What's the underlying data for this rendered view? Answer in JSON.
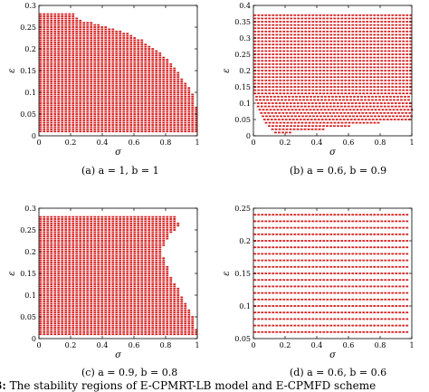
{
  "figure": {
    "caption_prefix": "3:",
    "caption_text": " The stability regions of E-CPMRT-LB model and E-CPMFD scheme"
  },
  "chart_data": [
    {
      "type": "scatter",
      "caption": "(a) a = 1, b = 1",
      "xlabel": "σ",
      "ylabel": "ε",
      "xlim": [
        0,
        1
      ],
      "ylim": [
        0,
        0.3
      ],
      "xticks": [
        0,
        0.2,
        0.4,
        0.6,
        0.8,
        1
      ],
      "yticks": [
        0,
        0.05,
        0.1,
        0.15,
        0.2,
        0.25,
        0.3
      ],
      "xtick_labels": [
        "0",
        "0.2",
        "0.4",
        "0.6",
        "0.8",
        "1"
      ],
      "ytick_labels": [
        "0",
        "0.05",
        "0.1",
        "0.15",
        "0.2",
        "0.25",
        "0.3"
      ],
      "marker_color": "#d62020",
      "stable_region": {
        "epsilon_levels": [
          0.01,
          0.015,
          0.02,
          0.025,
          0.03,
          0.035,
          0.04,
          0.045,
          0.05,
          0.055,
          0.06,
          0.065,
          0.07,
          0.075,
          0.08,
          0.085,
          0.09,
          0.095,
          0.1,
          0.105,
          0.11,
          0.115,
          0.12,
          0.125,
          0.13,
          0.135,
          0.14,
          0.145,
          0.15,
          0.155,
          0.16,
          0.165,
          0.17,
          0.175,
          0.18,
          0.185,
          0.19,
          0.195,
          0.2,
          0.205,
          0.21,
          0.215,
          0.22,
          0.225,
          0.23,
          0.235,
          0.24,
          0.245,
          0.25,
          0.255,
          0.26,
          0.265,
          0.27,
          0.275,
          0.28
        ],
        "sigma_min": [
          0.01,
          0.01,
          0.01,
          0.01,
          0.01,
          0.01,
          0.01,
          0.01,
          0.01,
          0.01,
          0.01,
          0.01,
          0.01,
          0.01,
          0.01,
          0.01,
          0.01,
          0.01,
          0.01,
          0.01,
          0.01,
          0.01,
          0.01,
          0.01,
          0.01,
          0.01,
          0.01,
          0.01,
          0.01,
          0.01,
          0.01,
          0.01,
          0.01,
          0.01,
          0.01,
          0.01,
          0.01,
          0.01,
          0.01,
          0.01,
          0.01,
          0.01,
          0.01,
          0.01,
          0.01,
          0.01,
          0.01,
          0.01,
          0.01,
          0.01,
          0.01,
          0.01,
          0.01,
          0.01,
          0.01
        ],
        "sigma_max": [
          1.0,
          1.0,
          1.0,
          1.0,
          1.0,
          1.0,
          1.0,
          1.0,
          1.0,
          1.0,
          1.0,
          1.0,
          0.99,
          0.99,
          0.98,
          0.98,
          0.97,
          0.97,
          0.96,
          0.95,
          0.95,
          0.94,
          0.93,
          0.92,
          0.91,
          0.9,
          0.89,
          0.88,
          0.87,
          0.86,
          0.85,
          0.84,
          0.82,
          0.81,
          0.8,
          0.78,
          0.77,
          0.75,
          0.73,
          0.71,
          0.69,
          0.67,
          0.65,
          0.62,
          0.59,
          0.56,
          0.52,
          0.48,
          0.43,
          0.38,
          0.33,
          0.28,
          0.25,
          0.23,
          0.22
        ]
      }
    },
    {
      "type": "scatter",
      "caption": "(b) a = 0.6, b = 0.9",
      "xlabel": "σ",
      "ylabel": "ε",
      "xlim": [
        0,
        1
      ],
      "ylim": [
        0,
        0.4
      ],
      "xticks": [
        0,
        0.2,
        0.4,
        0.6,
        0.8,
        1
      ],
      "yticks": [
        0,
        0.05,
        0.1,
        0.15,
        0.2,
        0.25,
        0.3,
        0.35,
        0.4
      ],
      "xtick_labels": [
        "0",
        "0.2",
        "0.4",
        "0.6",
        "0.8",
        "1"
      ],
      "ytick_labels": [
        "0",
        "0.05",
        "0.1",
        "0.15",
        "0.2",
        "0.25",
        "0.3",
        "0.35",
        "0.4"
      ],
      "marker_color": "#d62020",
      "stable_region": {
        "epsilon_levels": [
          0.01,
          0.02,
          0.03,
          0.04,
          0.05,
          0.06,
          0.07,
          0.08,
          0.09,
          0.1,
          0.11,
          0.12,
          0.13,
          0.14,
          0.15,
          0.16,
          0.17,
          0.18,
          0.19,
          0.2,
          0.21,
          0.22,
          0.23,
          0.24,
          0.25,
          0.26,
          0.27,
          0.28,
          0.29,
          0.3,
          0.31,
          0.32,
          0.33,
          0.34,
          0.35,
          0.36,
          0.37
        ],
        "sigma_min": [
          0.14,
          0.12,
          0.1,
          0.08,
          0.07,
          0.06,
          0.05,
          0.04,
          0.03,
          0.03,
          0.02,
          0.02,
          0.01,
          0.01,
          0.01,
          0.01,
          0.01,
          0.01,
          0.01,
          0.01,
          0.01,
          0.01,
          0.01,
          0.01,
          0.01,
          0.01,
          0.01,
          0.01,
          0.01,
          0.01,
          0.01,
          0.01,
          0.01,
          0.01,
          0.01,
          0.01,
          0.01
        ],
        "sigma_max": [
          0.25,
          0.45,
          0.62,
          0.8,
          1.0,
          1.0,
          1.0,
          1.0,
          1.0,
          1.0,
          1.0,
          1.0,
          1.0,
          1.0,
          1.0,
          1.0,
          1.0,
          1.0,
          1.0,
          1.0,
          1.0,
          1.0,
          1.0,
          1.0,
          1.0,
          1.0,
          1.0,
          1.0,
          1.0,
          1.0,
          1.0,
          1.0,
          1.0,
          1.0,
          1.0,
          1.0,
          1.0
        ]
      }
    },
    {
      "type": "scatter",
      "caption": "(c) a = 0.9, b = 0.8",
      "xlabel": "σ",
      "ylabel": "ε",
      "xlim": [
        0,
        1
      ],
      "ylim": [
        0,
        0.3
      ],
      "xticks": [
        0,
        0.2,
        0.4,
        0.6,
        0.8,
        1
      ],
      "yticks": [
        0,
        0.05,
        0.1,
        0.15,
        0.2,
        0.25,
        0.3
      ],
      "xtick_labels": [
        "0",
        "0.2",
        "0.4",
        "0.6",
        "0.8",
        "1"
      ],
      "ytick_labels": [
        "0",
        "0.05",
        "0.1",
        "0.15",
        "0.2",
        "0.25",
        "0.3"
      ],
      "marker_color": "#d62020",
      "stable_region": {
        "epsilon_levels": [
          0.01,
          0.015,
          0.02,
          0.025,
          0.03,
          0.035,
          0.04,
          0.045,
          0.05,
          0.055,
          0.06,
          0.065,
          0.07,
          0.075,
          0.08,
          0.085,
          0.09,
          0.095,
          0.1,
          0.105,
          0.11,
          0.115,
          0.12,
          0.125,
          0.13,
          0.135,
          0.14,
          0.145,
          0.15,
          0.155,
          0.16,
          0.165,
          0.17,
          0.175,
          0.18,
          0.185,
          0.19,
          0.195,
          0.2,
          0.205,
          0.21,
          0.215,
          0.22,
          0.225,
          0.23,
          0.235,
          0.24,
          0.245,
          0.25,
          0.255,
          0.26,
          0.265,
          0.27,
          0.275,
          0.28
        ],
        "sigma_min": [
          0.01,
          0.01,
          0.01,
          0.01,
          0.01,
          0.01,
          0.01,
          0.01,
          0.01,
          0.01,
          0.01,
          0.01,
          0.01,
          0.01,
          0.01,
          0.01,
          0.01,
          0.01,
          0.01,
          0.01,
          0.01,
          0.01,
          0.01,
          0.01,
          0.01,
          0.01,
          0.01,
          0.01,
          0.01,
          0.01,
          0.01,
          0.01,
          0.01,
          0.01,
          0.01,
          0.01,
          0.01,
          0.01,
          0.01,
          0.01,
          0.01,
          0.01,
          0.01,
          0.01,
          0.01,
          0.01,
          0.01,
          0.01,
          0.01,
          0.01,
          0.01,
          0.01,
          0.01,
          0.01,
          0.01
        ],
        "sigma_max": [
          1.0,
          1.0,
          1.0,
          0.99,
          0.99,
          0.98,
          0.98,
          0.97,
          0.97,
          0.96,
          0.96,
          0.95,
          0.94,
          0.93,
          0.93,
          0.92,
          0.91,
          0.91,
          0.9,
          0.89,
          0.88,
          0.88,
          0.87,
          0.86,
          0.85,
          0.85,
          0.84,
          0.83,
          0.83,
          0.82,
          0.81,
          0.81,
          0.8,
          0.8,
          0.79,
          0.79,
          0.78,
          0.78,
          0.78,
          0.78,
          0.78,
          0.79,
          0.79,
          0.8,
          0.81,
          0.82,
          0.83,
          0.84,
          0.86,
          0.87,
          0.88,
          0.88,
          0.87,
          0.87,
          0.87
        ]
      }
    },
    {
      "type": "scatter",
      "caption": "(d) a = 0.6, b = 0.6",
      "xlabel": "σ",
      "ylabel": "ε",
      "xlim": [
        0,
        1
      ],
      "ylim": [
        0.05,
        0.25
      ],
      "xticks": [
        0,
        0.2,
        0.4,
        0.6,
        0.8,
        1
      ],
      "yticks": [
        0.05,
        0.1,
        0.15,
        0.2,
        0.25
      ],
      "xtick_labels": [
        "0",
        "0.2",
        "0.4",
        "0.6",
        "0.8",
        "1"
      ],
      "ytick_labels": [
        "0.05",
        "0.1",
        "0.15",
        "0.2",
        "0.25"
      ],
      "marker_color": "#d62020",
      "stable_region": {
        "epsilon_levels": [
          0.06,
          0.07,
          0.08,
          0.09,
          0.1,
          0.11,
          0.12,
          0.13,
          0.14,
          0.15,
          0.16,
          0.17,
          0.18,
          0.19,
          0.2,
          0.21,
          0.22,
          0.23,
          0.24
        ],
        "sigma_min": [
          0.01,
          0.01,
          0.01,
          0.01,
          0.01,
          0.01,
          0.01,
          0.01,
          0.01,
          0.01,
          0.01,
          0.01,
          0.01,
          0.01,
          0.01,
          0.01,
          0.01,
          0.01,
          0.01
        ],
        "sigma_max": [
          0.99,
          0.99,
          0.99,
          0.99,
          0.99,
          0.99,
          0.99,
          0.99,
          0.99,
          0.99,
          0.99,
          0.99,
          0.99,
          0.99,
          0.99,
          0.99,
          0.99,
          0.99,
          0.99
        ]
      }
    }
  ]
}
